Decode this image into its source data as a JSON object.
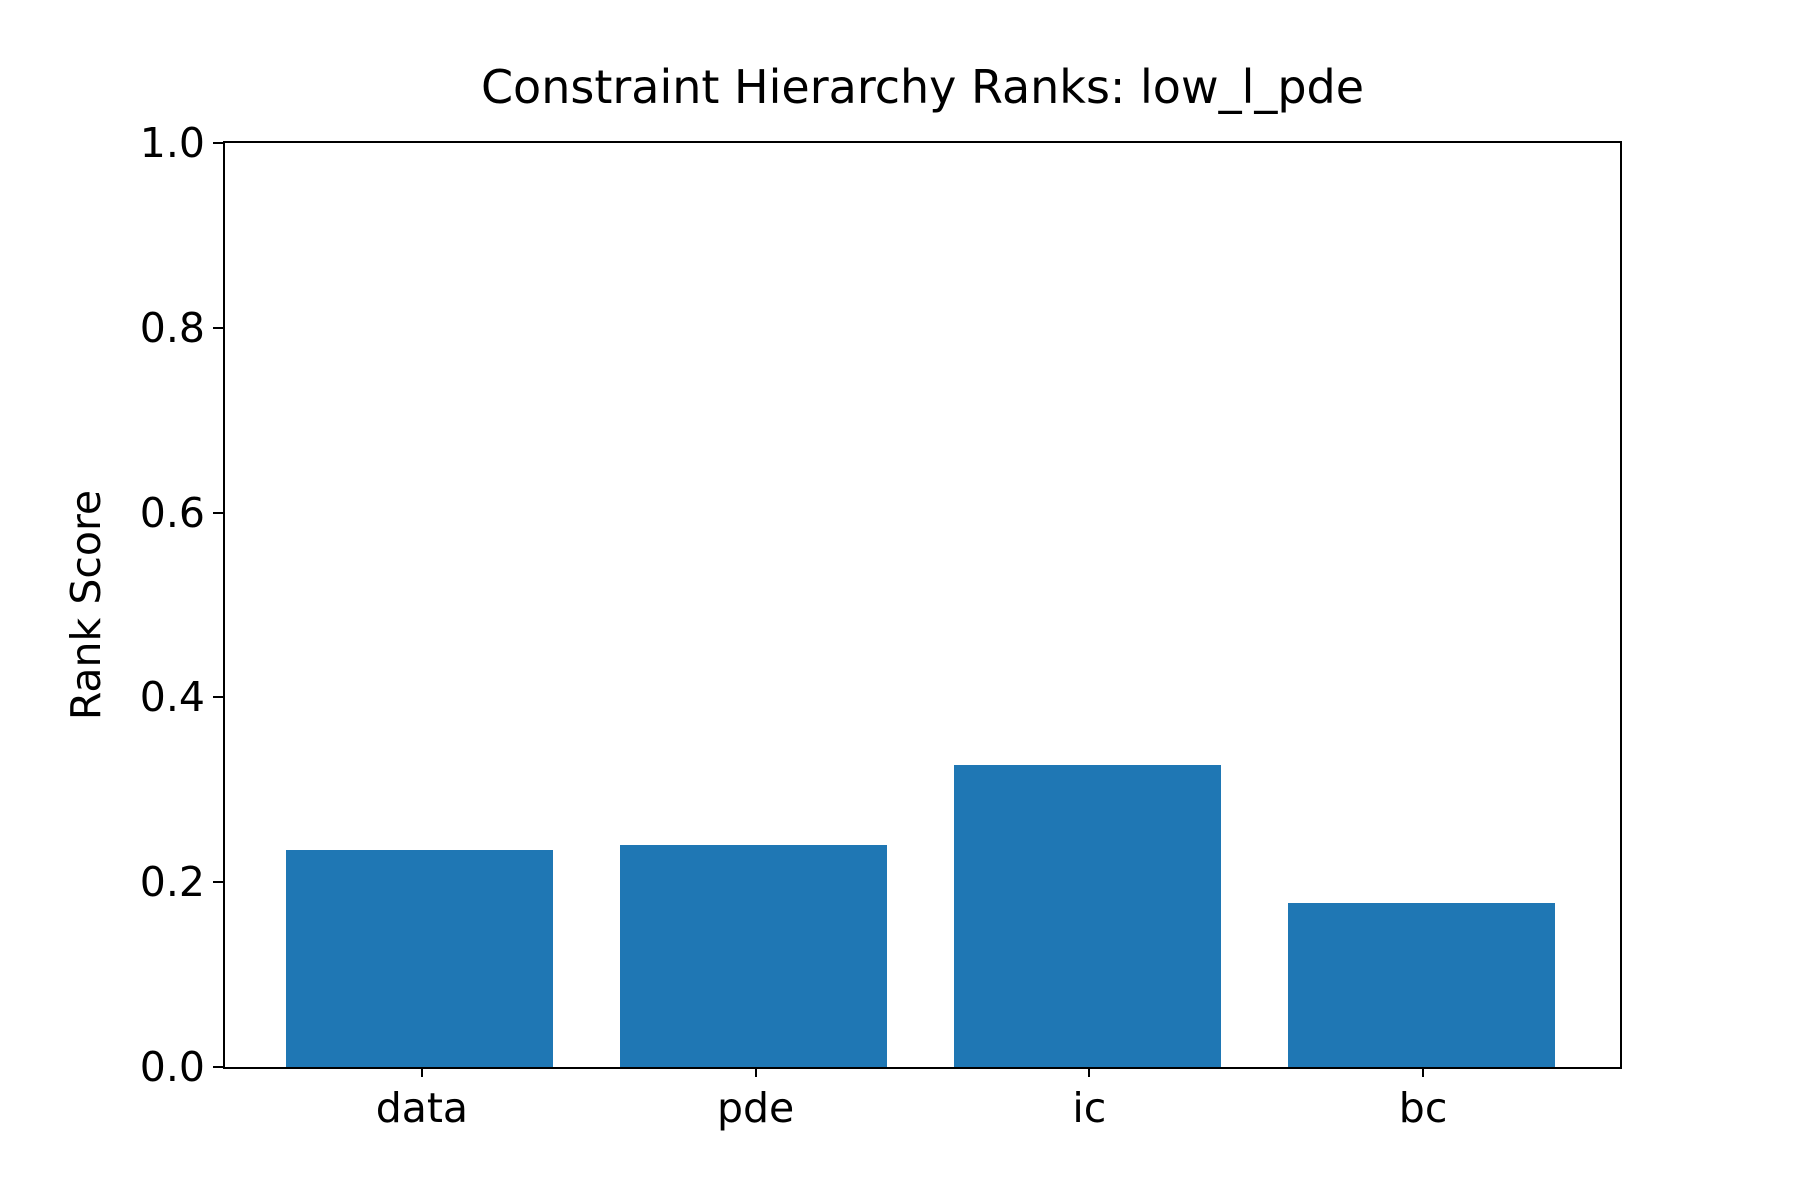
{
  "chart_data": {
    "type": "bar",
    "title": "Constraint Hierarchy Ranks: low_l_pde",
    "xlabel": "",
    "ylabel": "Rank Score",
    "categories": [
      "data",
      "pde",
      "ic",
      "bc"
    ],
    "values": [
      0.235,
      0.24,
      0.327,
      0.177
    ],
    "ylim": [
      0.0,
      1.0
    ],
    "yticks": [
      0.0,
      0.2,
      0.4,
      0.6,
      0.8,
      1.0
    ],
    "ytick_labels": [
      "0.0",
      "0.2",
      "0.4",
      "0.6",
      "0.8",
      "1.0"
    ],
    "bar_color": "#1f77b4",
    "axis_color": "#000000",
    "text_color": "#000000",
    "background_color": "#ffffff",
    "grid": false,
    "legend": null
  }
}
